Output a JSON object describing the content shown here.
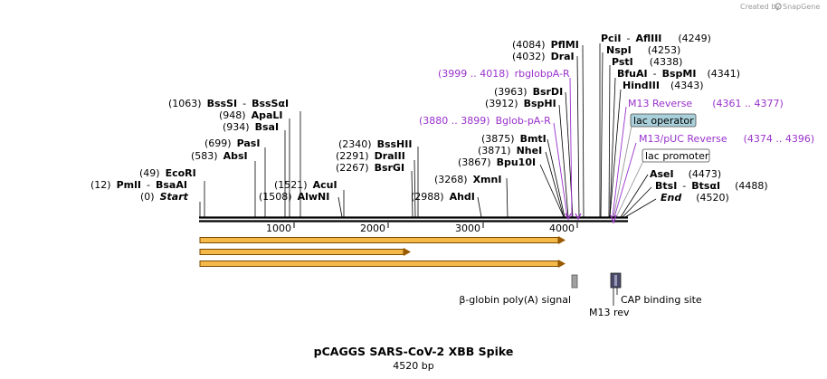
{
  "brand": {
    "prefix": "Created by",
    "name": "SnapGene"
  },
  "title": "pCAGGS SARS-CoV-2 XBB Spike",
  "length_label": "4520 bp",
  "ruler_ticks": [
    "1000",
    "2000",
    "3000",
    "4000"
  ],
  "sites": {
    "start": {
      "pos": "(0)",
      "name": "Start"
    },
    "pmli": {
      "pos": "(12)",
      "name": "PmlI",
      "sep": "-",
      "name2": "BsaAI"
    },
    "ecori": {
      "pos": "(49)",
      "name": "EcoRI"
    },
    "absi": {
      "pos": "(583)",
      "name": "AbsI"
    },
    "pasi": {
      "pos": "(699)",
      "name": "PasI"
    },
    "bsai": {
      "pos": "(934)",
      "name": "BsaI"
    },
    "apali": {
      "pos": "(948)",
      "name": "ApaLI"
    },
    "bsssi": {
      "pos": "(1063)",
      "name": "BssSI",
      "sep": "-",
      "name2": "BssSαI"
    },
    "alwni": {
      "pos": "(1508)",
      "name": "AlwNI"
    },
    "acui": {
      "pos": "(1521)",
      "name": "AcuI"
    },
    "bsrgi": {
      "pos": "(2267)",
      "name": "BsrGI"
    },
    "draiii": {
      "pos": "(2291)",
      "name": "DraIII"
    },
    "bsshii": {
      "pos": "(2340)",
      "name": "BssHII"
    },
    "ahdi": {
      "pos": "(2988)",
      "name": "AhdI"
    },
    "xmni": {
      "pos": "(3268)",
      "name": "XmnI"
    },
    "bpu10i": {
      "pos": "(3867)",
      "name": "Bpu10I"
    },
    "nhei": {
      "pos": "(3871)",
      "name": "NheI"
    },
    "bmti": {
      "pos": "(3875)",
      "name": "BmtI"
    },
    "bsphi": {
      "pos": "(3912)",
      "name": "BspHI"
    },
    "bsrdi": {
      "pos": "(3963)",
      "name": "BsrDI"
    },
    "drai": {
      "pos": "(4032)",
      "name": "DraI"
    },
    "pflmi": {
      "pos": "(4084)",
      "name": "PflMI"
    },
    "pcii": {
      "name": "PciI",
      "sep": "-",
      "name2": "AflIII",
      "pos": "(4249)"
    },
    "nspi": {
      "name": "NspI",
      "pos": "(4253)"
    },
    "psti": {
      "name": "PstI",
      "pos": "(4338)"
    },
    "bfuai": {
      "name": "BfuAI",
      "sep": "-",
      "name2": "BspMI",
      "pos": "(4341)"
    },
    "hindiii": {
      "name": "HindIII",
      "pos": "(4343)"
    },
    "asei": {
      "name": "AseI",
      "pos": "(4473)"
    },
    "btsi": {
      "name": "BtsI",
      "sep": "-",
      "name2": "BtsαI",
      "pos": "(4488)"
    },
    "end": {
      "name": "End",
      "pos": "(4520)"
    }
  },
  "primers": {
    "rbglobpa": {
      "range": "(3999 .. 4018)",
      "name": "rbglobpA-R"
    },
    "bglobpa": {
      "range": "(3880 .. 3899)",
      "name": "Bglob-pA-R"
    },
    "m13rev": {
      "name": "M13 Reverse",
      "range": "(4361 .. 4377)"
    },
    "m13puc": {
      "name": "M13/pUC Reverse",
      "range": "(4374 .. 4396)"
    }
  },
  "features": {
    "lac_operator": "lac operator",
    "lac_promoter": "lac promoter",
    "bglobin": "β-globin poly(A) signal",
    "cap": "CAP binding site",
    "m13rev": "M13 rev"
  },
  "colors": {
    "primer": "#9932CC",
    "orf_fill": "#F5B94A",
    "orf_stroke": "#7A4A00",
    "lac_operator_fill": "#A9D0DA",
    "feature_gray": "#A0A0A0",
    "feature_dark": "#4A4A6A"
  }
}
